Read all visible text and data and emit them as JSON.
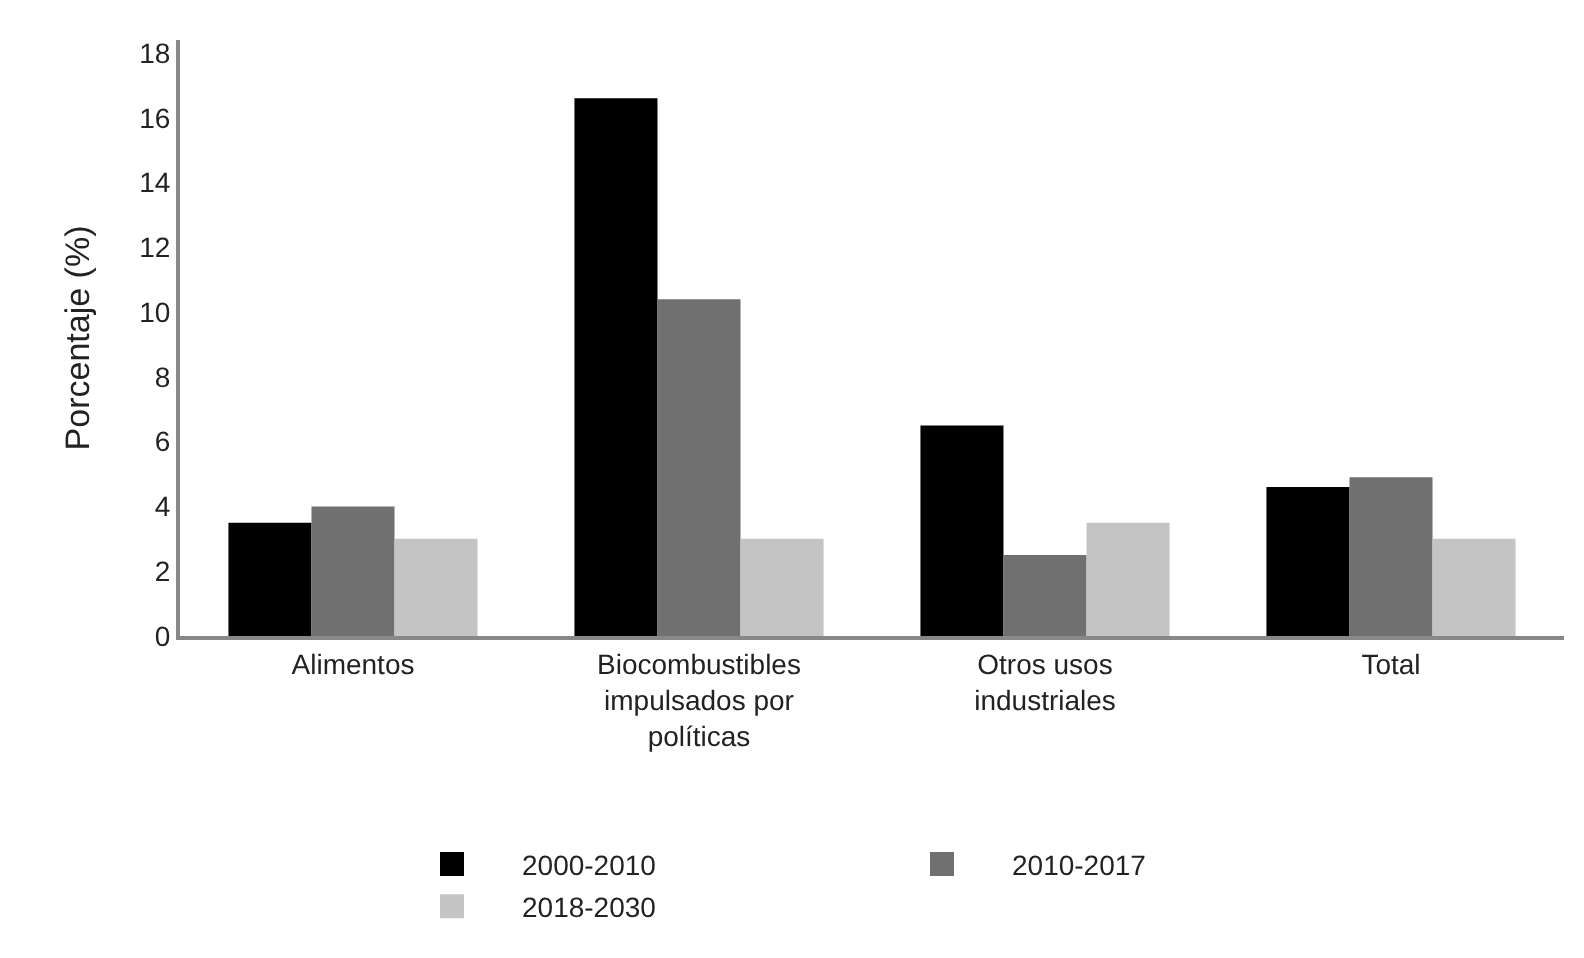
{
  "chart_data": {
    "type": "bar",
    "ylabel": "Porcentaje (%)",
    "categories": [
      "Alimentos",
      "Biocombustibles impulsados por políticas",
      "Otros usos industriales",
      "Total"
    ],
    "series": [
      {
        "name": "2000-2010",
        "color": "#000000",
        "values": [
          3.5,
          16.6,
          6.5,
          4.6
        ]
      },
      {
        "name": "2010-2017",
        "color": "#707070",
        "values": [
          4.0,
          10.4,
          2.5,
          4.9
        ]
      },
      {
        "name": "2018-2030",
        "color": "#c4c4c4",
        "values": [
          3.0,
          3.0,
          3.5,
          3.0
        ]
      }
    ],
    "ylim": [
      0,
      18.4
    ],
    "yticks": [
      0,
      2,
      4,
      6,
      8,
      10,
      12,
      14,
      16,
      18
    ],
    "grid": false,
    "legend": "bottom"
  }
}
